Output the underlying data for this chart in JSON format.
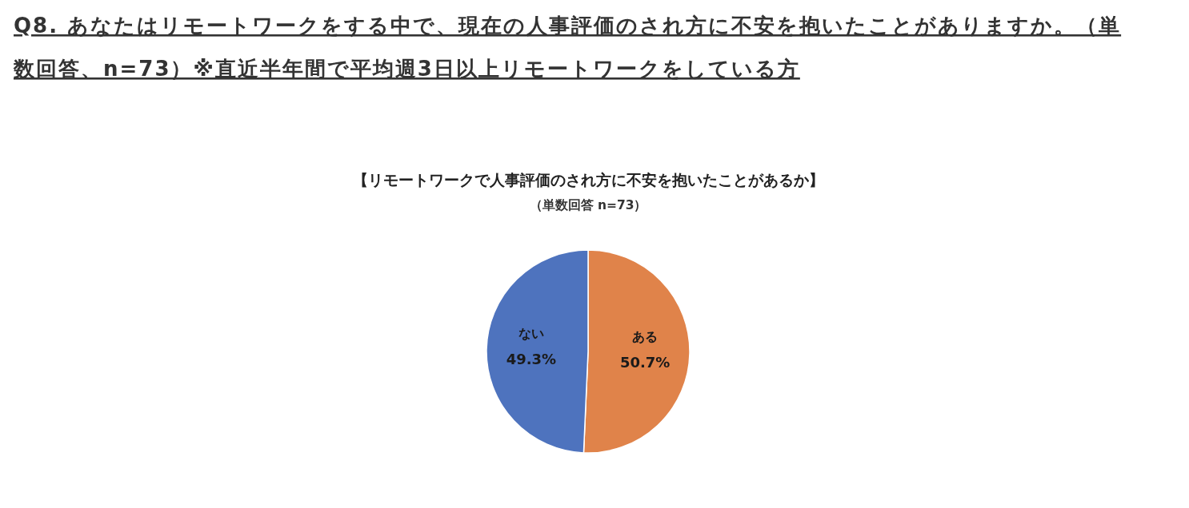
{
  "chart_data": {
    "type": "pie",
    "title": "【リモートワークで人事評価のされ方に不安を抱いたことがあるか】",
    "subtitle": "（単数回答 n=73）",
    "annotations": [
      "Q8. あなたはリモートワークをする中で、現在の人事評価のされ方に不安を抱いたことがありますか。（単数回答、n=73）※直近半年間で平均週3日以上リモートワークをしている方"
    ],
    "categories": [
      "ある",
      "ない"
    ],
    "values": [
      50.7,
      49.3
    ],
    "colors": [
      "#e0834a",
      "#4e73be"
    ],
    "value_labels": [
      "50.7%",
      "49.3%"
    ]
  }
}
